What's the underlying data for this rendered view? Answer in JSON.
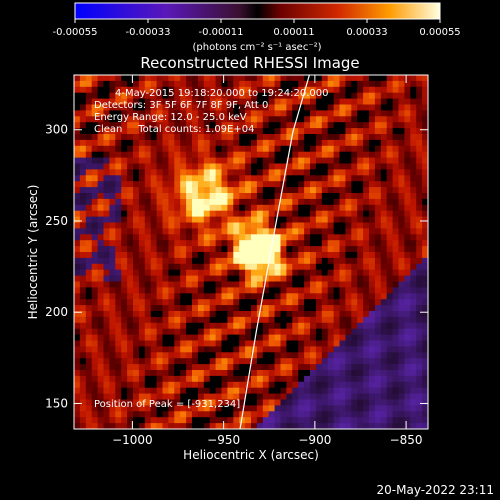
{
  "colorbar": {
    "tick_labels": [
      "-0.00055",
      "-0.00033",
      "-0.00011",
      "0.00011",
      "0.00033",
      "0.00055"
    ],
    "tick_values": [
      -0.00055,
      -0.00033,
      -0.00011,
      0.00011,
      0.00033,
      0.00055
    ],
    "range": [
      -0.00055,
      0.00055
    ],
    "unit_label": "(photons cm⁻² s⁻¹ asec⁻²)"
  },
  "chart_data": {
    "type": "heatmap",
    "title": "Reconstructed RHESSI Image",
    "xlabel": "Heliocentric X (arcsec)",
    "ylabel": "Heliocentric Y (arcsec)",
    "xlim": [
      -1032,
      -838
    ],
    "ylim": [
      136,
      330
    ],
    "x_ticks": [
      -1000,
      -950,
      -900,
      -850
    ],
    "x_tick_labels": [
      "−1000",
      "−950",
      "−900",
      "−850"
    ],
    "y_ticks": [
      150,
      200,
      250,
      300
    ],
    "y_tick_labels": [
      "150",
      "200",
      "250",
      "300"
    ],
    "annotations": [
      "4-May-2015 19:18:20.000 to 19:24:20.000",
      "Detectors: 3F 5F 6F 7F 8F 9F, Att 0",
      "Energy Range: 12.0 - 25.0 keV",
      "Clean     Total counts: 1.09E+04"
    ],
    "peak_label": "Position of Peak = [-931,234]",
    "peak": [
      -931,
      234
    ],
    "limb_x": [
      -941,
      -932,
      -922,
      -912,
      -903
    ],
    "limb_y": [
      136,
      190,
      245,
      299,
      330
    ],
    "colors": {
      "negative": "#5a2a9e",
      "positive_low": "#8a0000",
      "positive_high": "#ffff80",
      "background": "#000000"
    }
  },
  "footer": {
    "timestamp": "20-May-2022 23:11"
  }
}
